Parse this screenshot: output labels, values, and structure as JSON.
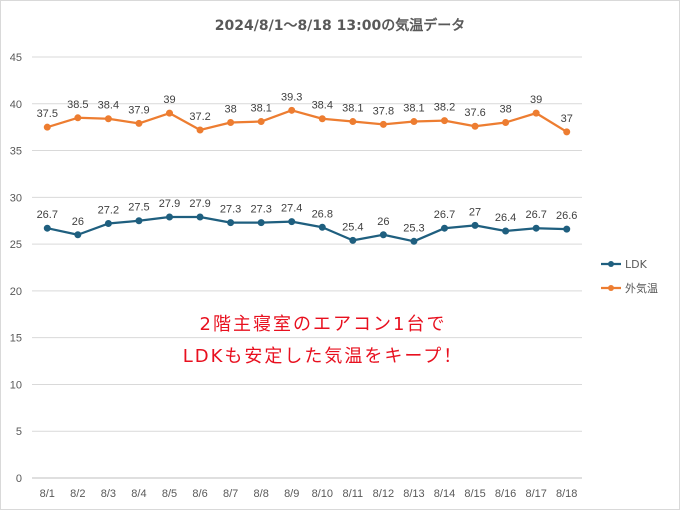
{
  "chart_data": {
    "type": "line",
    "title": "2024/8/1～8/18 13:00の気温データ",
    "categories": [
      "8/1",
      "8/2",
      "8/3",
      "8/4",
      "8/5",
      "8/6",
      "8/7",
      "8/8",
      "8/9",
      "8/10",
      "8/11",
      "8/12",
      "8/13",
      "8/14",
      "8/15",
      "8/16",
      "8/17",
      "8/18"
    ],
    "ylim": [
      0,
      45
    ],
    "yticks": [
      0,
      5,
      10,
      15,
      20,
      25,
      30,
      35,
      40,
      45
    ],
    "grid": true,
    "legend_position": "right",
    "series": [
      {
        "name": "LDK",
        "color": "#1f5f7f",
        "values": [
          26.7,
          26,
          27.2,
          27.5,
          27.9,
          27.9,
          27.3,
          27.3,
          27.4,
          26.8,
          25.4,
          26,
          25.3,
          26.7,
          27,
          26.4,
          26.7,
          26.6
        ]
      },
      {
        "name": "外気温",
        "color": "#ed7d31",
        "values": [
          37.5,
          38.5,
          38.4,
          37.9,
          39,
          37.2,
          38,
          38.1,
          39.3,
          38.4,
          38.1,
          37.8,
          38.1,
          38.2,
          37.6,
          38,
          39,
          37
        ]
      }
    ],
    "annotation": {
      "lines": [
        "2階主寝室のエアコン1台で",
        "LDKも安定した気温をキープ！"
      ],
      "color": "#e8101f"
    }
  }
}
